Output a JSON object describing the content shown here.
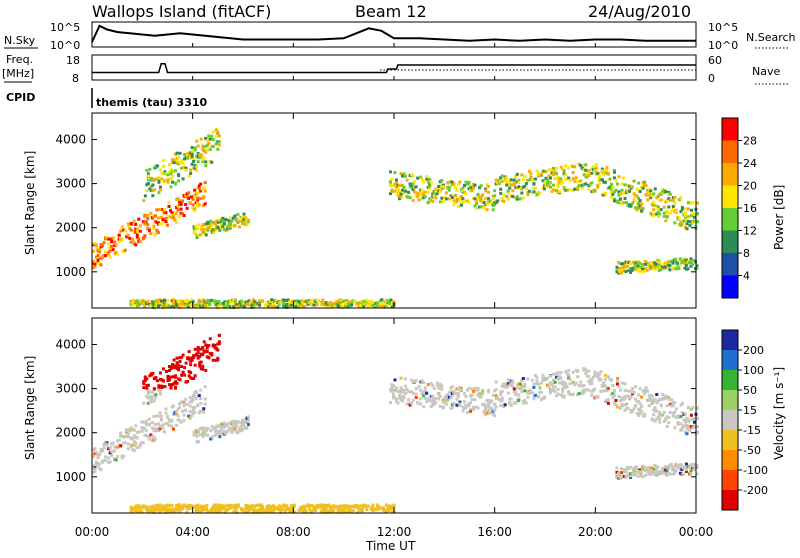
{
  "header": {
    "station": "Wallops Island (fitACF)",
    "beam": "Beam 12",
    "date": "24/Aug/2010"
  },
  "panel_labels": {
    "nsky": "N.Sky",
    "nsearch": "N.Search",
    "freq_top": "Freq.",
    "freq_unit": "[MHz]",
    "nave": "Nave",
    "cpid": "CPID",
    "cpid_value": "themis (tau) 3310"
  },
  "chart_data": [
    {
      "type": "line",
      "name": "noise",
      "ylabels_left": [
        "10^5",
        "10^0"
      ],
      "ylabels_right": [
        "10^5",
        "10^0"
      ],
      "x_hours": [
        0,
        0.3,
        0.6,
        1,
        1.5,
        2,
        2.5,
        3,
        3.5,
        4,
        4.5,
        5,
        5.5,
        6,
        7,
        8,
        9,
        10,
        10.5,
        11,
        11.5,
        12,
        13,
        14,
        15,
        16,
        17,
        18,
        19,
        20,
        21,
        22,
        23,
        24
      ],
      "nsky_rel": [
        0.2,
        0.85,
        0.7,
        0.6,
        0.55,
        0.5,
        0.45,
        0.5,
        0.55,
        0.5,
        0.45,
        0.4,
        0.35,
        0.3,
        0.3,
        0.3,
        0.3,
        0.35,
        0.55,
        0.75,
        0.65,
        0.35,
        0.35,
        0.3,
        0.25,
        0.3,
        0.25,
        0.3,
        0.25,
        0.3,
        0.3,
        0.25,
        0.25,
        0.25
      ]
    },
    {
      "type": "line",
      "name": "frequency",
      "ylabels_left": [
        "18",
        "8"
      ],
      "ylabels_right": [
        "60",
        "0"
      ],
      "x_hours": [
        0,
        2.65,
        2.75,
        2.9,
        3.0,
        11.7,
        11.75,
        12.1,
        12.15,
        24
      ],
      "freq_mhz": [
        11,
        11,
        14.5,
        14.5,
        11,
        11,
        12.4,
        12.4,
        14.0,
        14.0
      ]
    },
    {
      "type": "heatmap",
      "name": "power",
      "ylabel": "Slant Range [km]",
      "yticks": [
        1000,
        2000,
        3000,
        4000
      ],
      "ylim": [
        180,
        4600
      ],
      "colorbar_label": "Power [dB]",
      "colorbar_ticks": [
        "28",
        "24",
        "20",
        "16",
        "12",
        "8",
        "4"
      ],
      "colorbar_colors": [
        "#ff0000",
        "#ff6a00",
        "#ffaa00",
        "#ffe600",
        "#66cc33",
        "#2e8b57",
        "#1f4fa8",
        "#0000ff"
      ]
    },
    {
      "type": "heatmap",
      "name": "velocity",
      "ylabel": "Slant Range [km]",
      "yticks": [
        1000,
        2000,
        3000,
        4000
      ],
      "ylim": [
        180,
        4600
      ],
      "colorbar_label": "Velocity [m s⁻¹]",
      "colorbar_ticks": [
        "200",
        "100",
        "50",
        "15",
        "-15",
        "-50",
        "-100",
        "-200"
      ],
      "colorbar_colors": [
        "#1a2a9e",
        "#1f6fd0",
        "#33b533",
        "#9cd166",
        "#c8c8c0",
        "#f0c020",
        "#ff8c00",
        "#ff4500",
        "#e00000"
      ]
    }
  ],
  "time_axis": {
    "xlabel": "Time UT",
    "xticks": [
      "00:00",
      "04:00",
      "08:00",
      "12:00",
      "16:00",
      "20:00",
      "00:00"
    ],
    "xlim": [
      0,
      24
    ]
  },
  "colors": {
    "background": "#ffffff",
    "axis": "#000000"
  }
}
